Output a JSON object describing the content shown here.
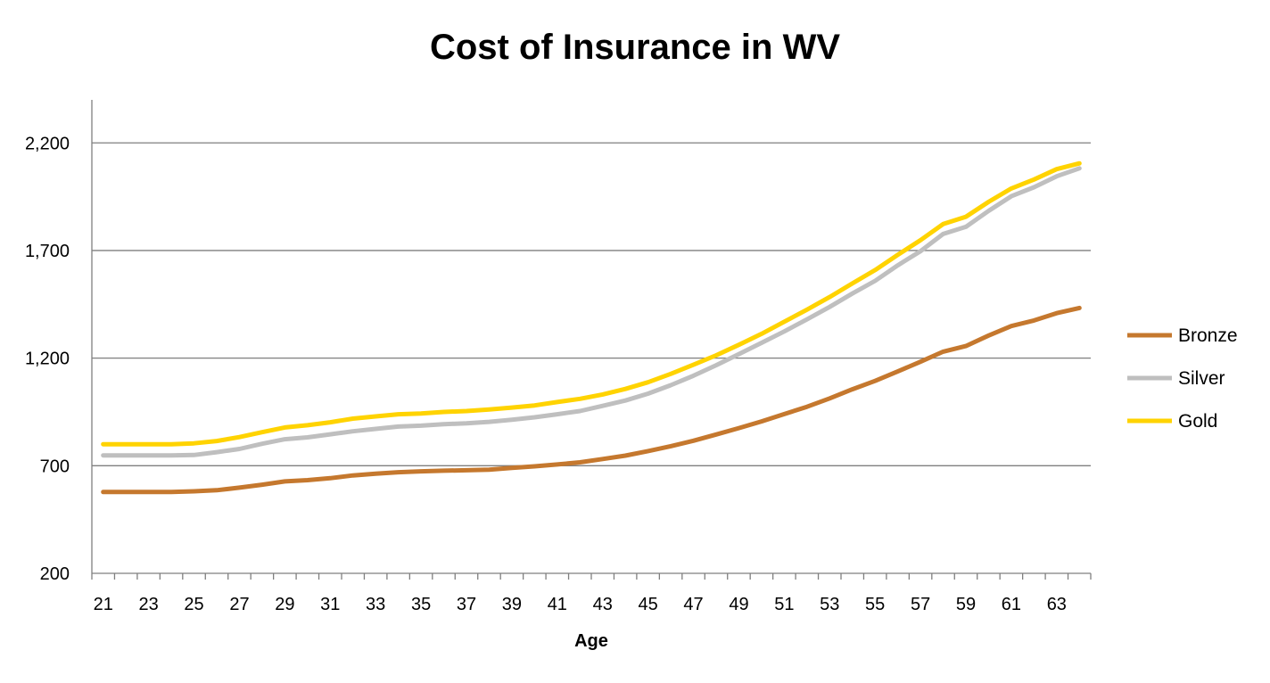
{
  "chart_data": {
    "type": "line",
    "title": "Cost of Insurance in WV",
    "xlabel": "Age",
    "ylabel": "",
    "ylim": [
      200,
      2400
    ],
    "yticks": [
      200,
      700,
      1200,
      1700,
      2200
    ],
    "ytick_labels": [
      "200",
      "700",
      "1,200",
      "1,700",
      "2,200"
    ],
    "xticks": [
      21,
      23,
      25,
      27,
      29,
      31,
      33,
      35,
      37,
      39,
      41,
      43,
      45,
      47,
      49,
      51,
      53,
      55,
      57,
      59,
      61,
      63
    ],
    "x": [
      21,
      22,
      23,
      24,
      25,
      26,
      27,
      28,
      29,
      30,
      31,
      32,
      33,
      34,
      35,
      36,
      37,
      38,
      39,
      40,
      41,
      42,
      43,
      44,
      45,
      46,
      47,
      48,
      49,
      50,
      51,
      52,
      53,
      54,
      55,
      56,
      57,
      58,
      59,
      60,
      61,
      62,
      63,
      64
    ],
    "grid": "horizontal",
    "legend_position": "right",
    "series": [
      {
        "name": "Bronze",
        "color": "#c5782e",
        "values": [
          578,
          578,
          578,
          578,
          581,
          586,
          598,
          612,
          627,
          633,
          642,
          655,
          663,
          670,
          674,
          677,
          679,
          682,
          690,
          697,
          706,
          716,
          731,
          747,
          768,
          791,
          816,
          845,
          875,
          906,
          940,
          974,
          1013,
          1055,
          1094,
          1138,
          1183,
          1230,
          1256,
          1305,
          1349,
          1375,
          1409,
          1433
        ]
      },
      {
        "name": "Silver",
        "color": "#bfbfbf",
        "values": [
          748,
          748,
          748,
          748,
          750,
          763,
          778,
          802,
          823,
          832,
          846,
          860,
          871,
          882,
          886,
          893,
          897,
          904,
          914,
          925,
          939,
          954,
          978,
          1003,
          1035,
          1074,
          1118,
          1167,
          1219,
          1271,
          1324,
          1380,
          1438,
          1500,
          1559,
          1631,
          1697,
          1777,
          1810,
          1884,
          1952,
          1994,
          2045,
          2082
        ]
      },
      {
        "name": "Gold",
        "color": "#ffd300",
        "values": [
          800,
          800,
          800,
          800,
          804,
          815,
          833,
          856,
          878,
          888,
          902,
          919,
          929,
          939,
          943,
          950,
          954,
          961,
          970,
          980,
          996,
          1011,
          1031,
          1057,
          1088,
          1127,
          1169,
          1213,
          1262,
          1313,
          1369,
          1425,
          1484,
          1547,
          1609,
          1680,
          1748,
          1823,
          1857,
          1926,
          1988,
          2030,
          2078,
          2105
        ]
      }
    ]
  }
}
